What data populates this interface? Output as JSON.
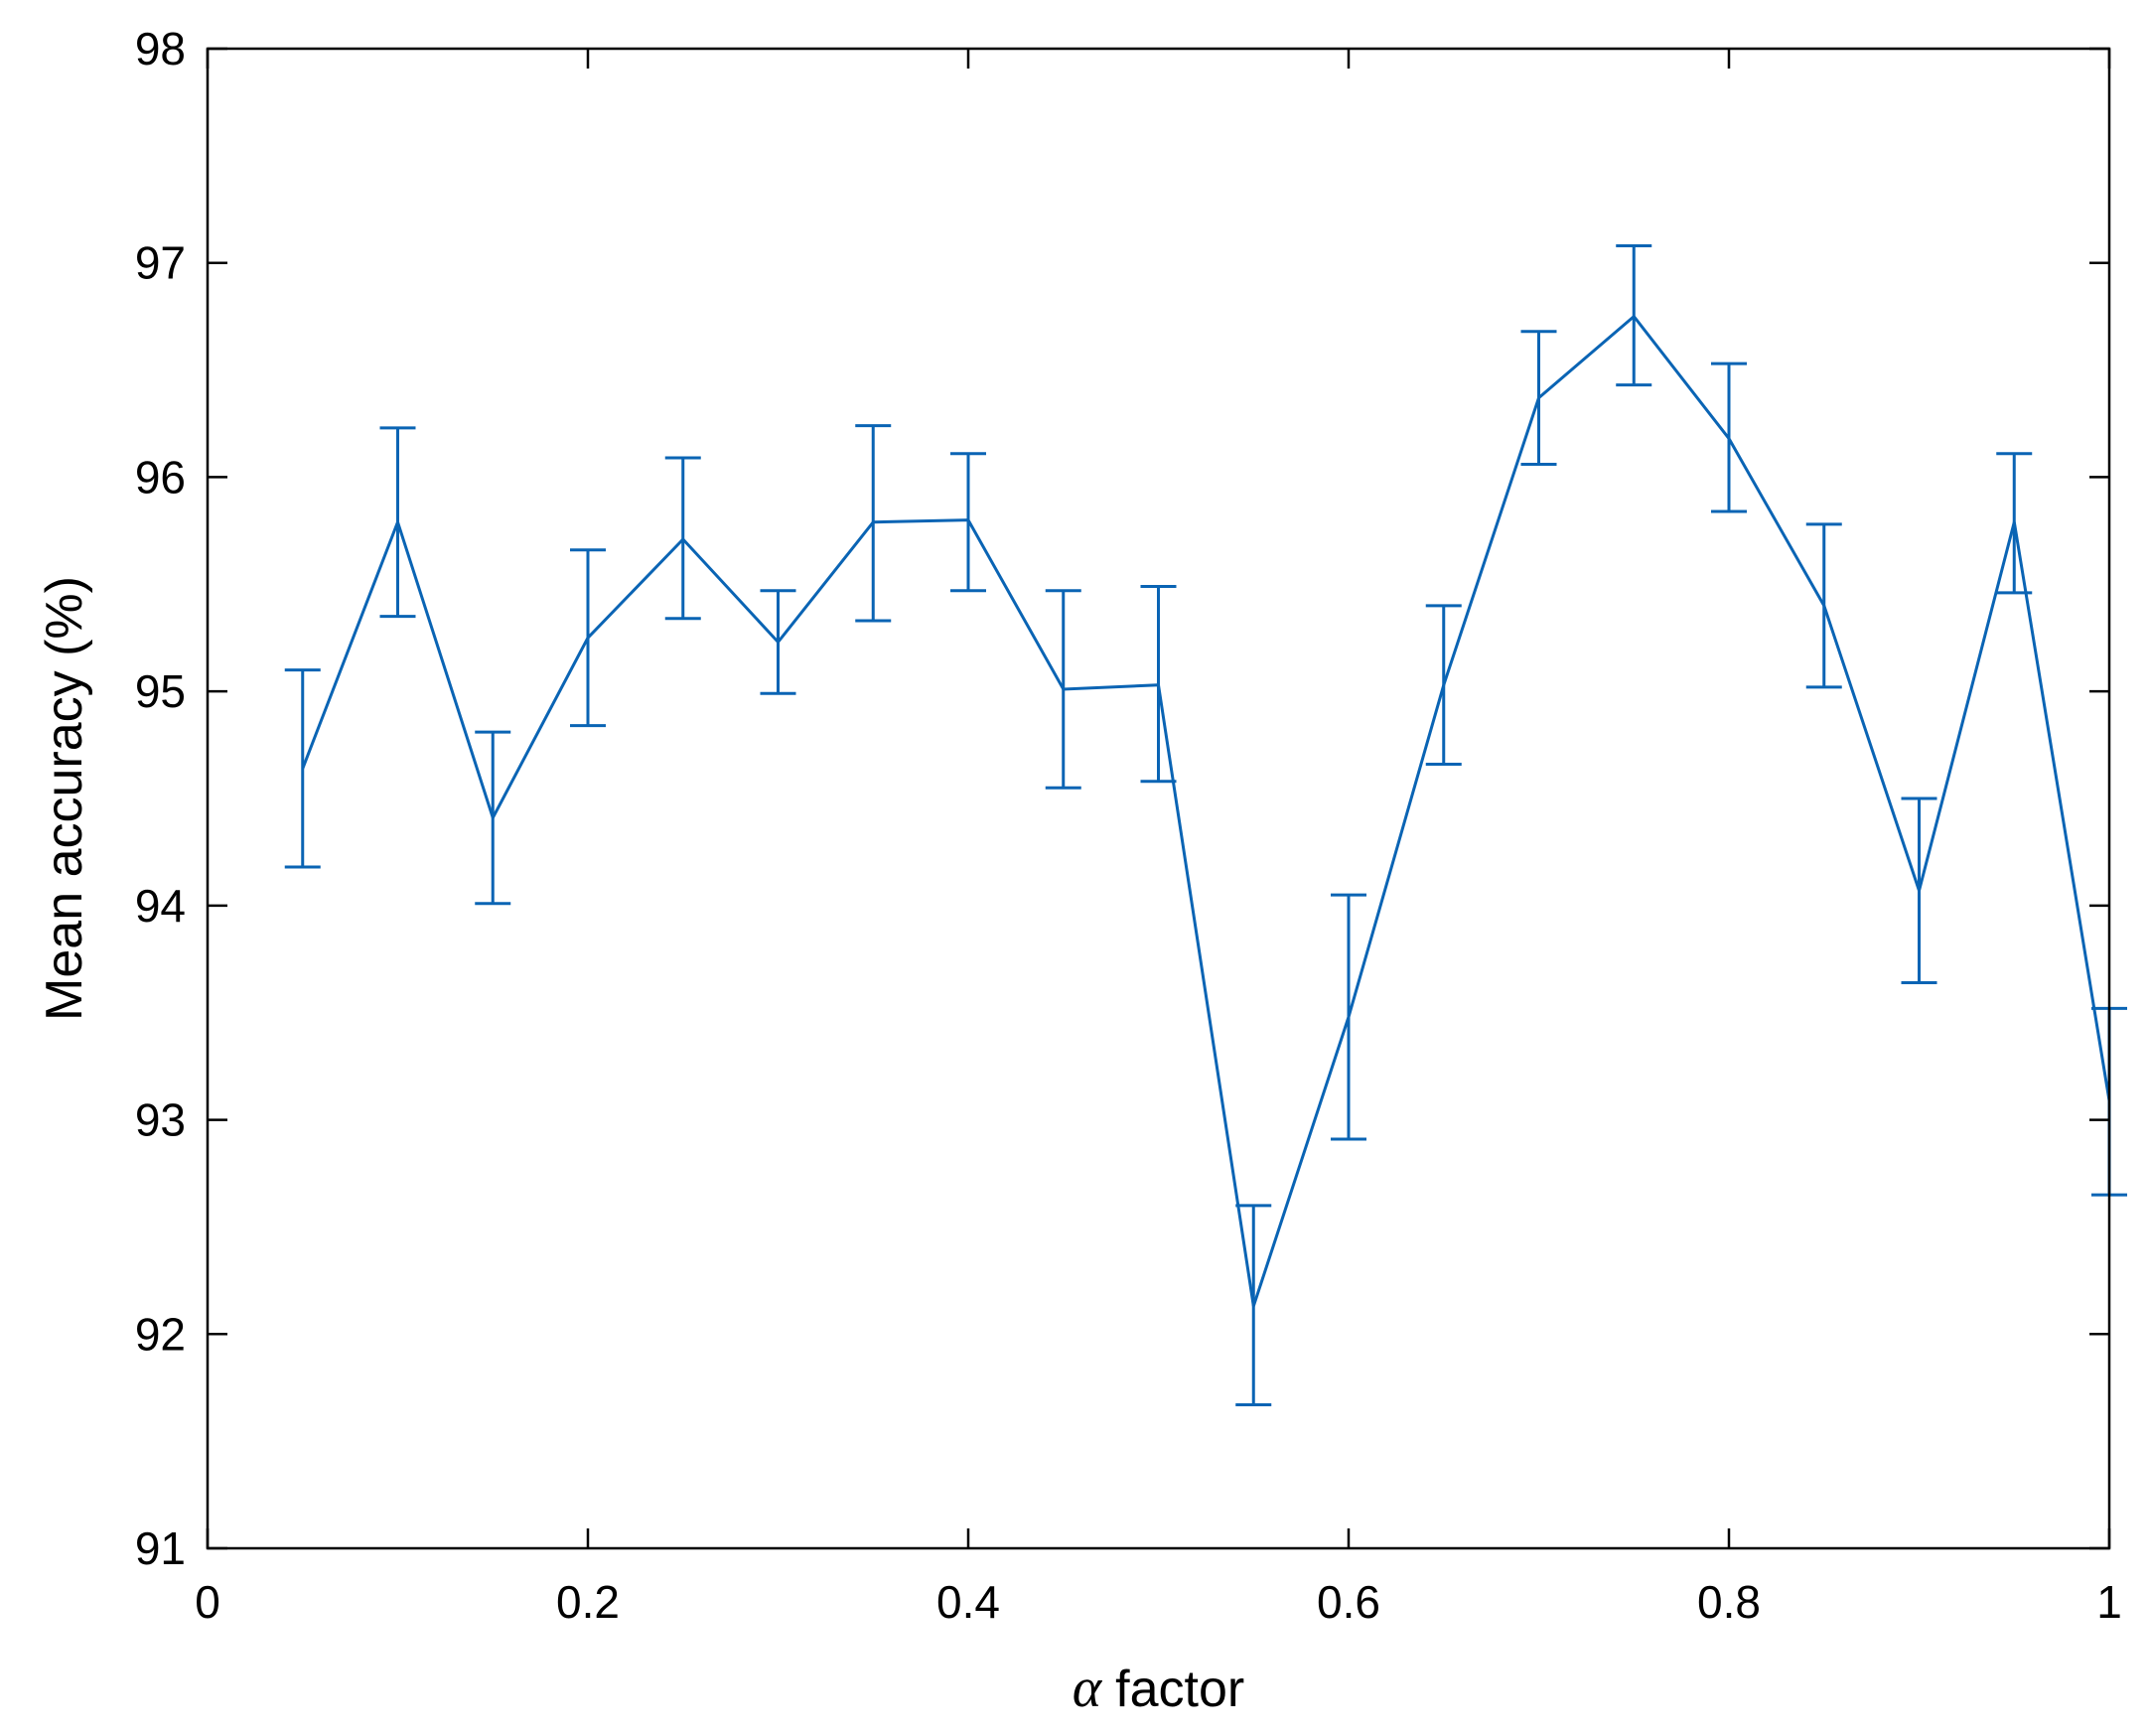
{
  "chart_data": {
    "type": "line",
    "title": "",
    "xlabel_symbol": "α",
    "xlabel": "factor",
    "ylabel": "Mean accuracy (%)",
    "xlim": [
      0,
      1
    ],
    "ylim": [
      91,
      98
    ],
    "x_ticks": [
      "0",
      "0.2",
      "0.4",
      "0.6",
      "0.8",
      "1"
    ],
    "x_tick_values": [
      0,
      0.2,
      0.4,
      0.6,
      0.8,
      1
    ],
    "y_ticks": [
      "91",
      "92",
      "93",
      "94",
      "95",
      "96",
      "97",
      "98"
    ],
    "y_tick_values": [
      91,
      92,
      93,
      94,
      95,
      96,
      97,
      98
    ],
    "grid": false,
    "color": "#0a64b4",
    "series": [
      {
        "x": [
          0.05,
          0.1,
          0.15,
          0.2,
          0.25,
          0.3,
          0.35,
          0.4,
          0.45,
          0.5,
          0.55,
          0.6,
          0.65,
          0.7,
          0.75,
          0.8,
          0.85,
          0.9,
          0.95,
          1.0
        ],
        "y": [
          94.64,
          95.79,
          94.41,
          95.25,
          95.71,
          95.23,
          95.79,
          95.8,
          95.01,
          95.03,
          92.13,
          93.48,
          95.03,
          96.37,
          96.75,
          96.18,
          95.4,
          94.07,
          95.79,
          93.09
        ],
        "err_low": [
          94.18,
          95.35,
          94.01,
          94.84,
          95.34,
          94.99,
          95.33,
          95.47,
          94.55,
          94.58,
          91.67,
          92.91,
          94.66,
          96.06,
          96.43,
          95.84,
          95.02,
          93.64,
          95.46,
          92.65
        ],
        "err_high": [
          95.1,
          96.23,
          94.81,
          95.66,
          96.09,
          95.47,
          96.24,
          96.11,
          95.47,
          95.49,
          92.6,
          94.05,
          95.4,
          96.68,
          97.08,
          96.53,
          95.78,
          94.5,
          96.11,
          93.52
        ]
      }
    ]
  }
}
